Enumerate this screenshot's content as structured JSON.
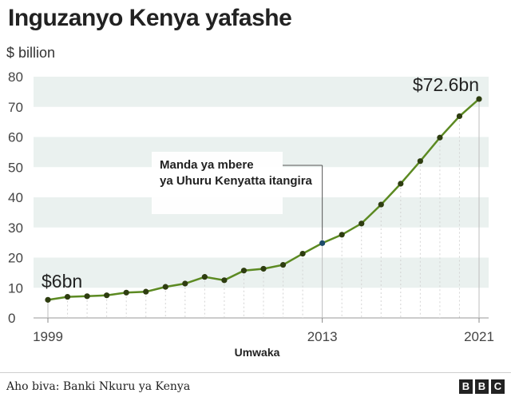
{
  "title": "Inguzanyo Kenya yafashe",
  "unit_label": "$ billion",
  "source": "Aho biva: Banki Nkuru ya Kenya",
  "brand": [
    "B",
    "B",
    "C"
  ],
  "colors": {
    "line": "#5c8a22",
    "point": "#2e3d10",
    "highlight_point": "#1d4b6b",
    "band": "#eaf1ef"
  },
  "chart_data": {
    "type": "line",
    "title": "Inguzanyo Kenya yafashe",
    "ylabel": "$ billion",
    "xlabel": "Umwaka",
    "ylim": [
      0,
      80
    ],
    "yticks": [
      0,
      10,
      20,
      30,
      40,
      50,
      60,
      70,
      80
    ],
    "xticks": [
      1999,
      2013,
      2021
    ],
    "grid": true,
    "x": [
      1999,
      2000,
      2001,
      2002,
      2003,
      2004,
      2005,
      2006,
      2007,
      2008,
      2009,
      2010,
      2011,
      2012,
      2013,
      2014,
      2015,
      2016,
      2017,
      2018,
      2019,
      2020,
      2021
    ],
    "values": [
      6,
      7,
      7.2,
      7.5,
      8.4,
      8.7,
      10.3,
      11.4,
      13.6,
      12.5,
      15.7,
      16.3,
      17.6,
      21.3,
      24.8,
      27.6,
      31.3,
      37.6,
      44.5,
      52,
      59.8,
      66.9,
      72.6
    ],
    "annotations": [
      {
        "label": "$6bn",
        "x": 1999,
        "y": 6
      },
      {
        "label": "$72.6bn",
        "x": 2021,
        "y": 72.6
      },
      {
        "label": "Manda ya mbere ya Uhuru Kenyatta itangira",
        "x": 2013,
        "y": 24.8
      }
    ]
  }
}
